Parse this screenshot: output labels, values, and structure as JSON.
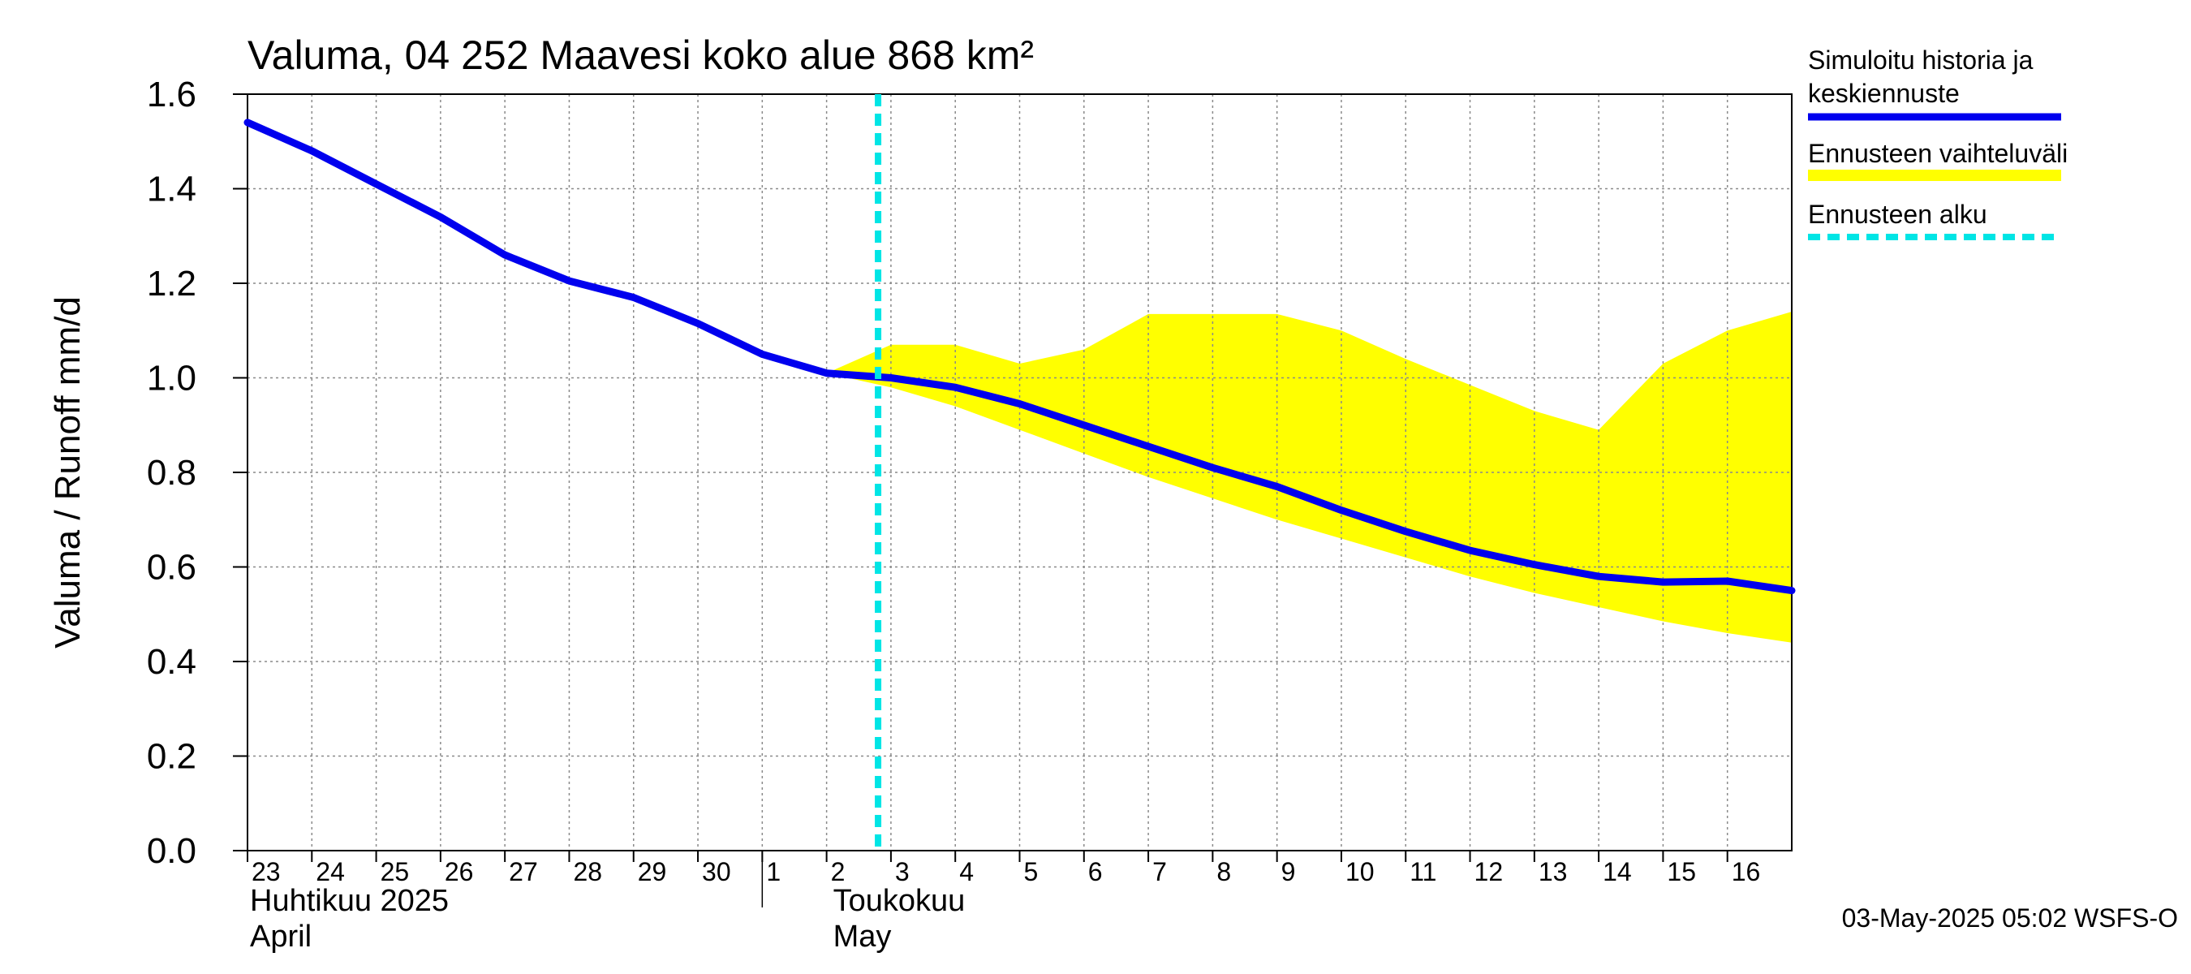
{
  "chart_data": {
    "type": "line",
    "title": "Valuma, 04 252 Maavesi koko alue 868 km²",
    "ylabel": "Valuma / Runoff    mm/d",
    "ylim": [
      0,
      1.6
    ],
    "yticks": [
      "0.0",
      "0.2",
      "0.4",
      "0.6",
      "0.8",
      "1.0",
      "1.2",
      "1.4",
      "1.6"
    ],
    "x_labels": [
      "23",
      "24",
      "25",
      "26",
      "27",
      "28",
      "29",
      "30",
      "1",
      "2",
      "3",
      "4",
      "5",
      "6",
      "7",
      "8",
      "9",
      "10",
      "11",
      "12",
      "13",
      "14",
      "15",
      "16"
    ],
    "month_labels": [
      {
        "line1": "Huhtikuu  2025",
        "line2": "April"
      },
      {
        "line1": "Toukokuu",
        "line2": "May"
      }
    ],
    "forecast_start_index": 9.8,
    "series": [
      {
        "name": "Simuloitu historia ja keskiennuste",
        "color": "#0000ee",
        "values": [
          1.54,
          1.48,
          1.41,
          1.34,
          1.26,
          1.205,
          1.17,
          1.115,
          1.05,
          1.01,
          1.0,
          0.98,
          0.945,
          0.9,
          0.855,
          0.81,
          0.77,
          0.72,
          0.675,
          0.635,
          0.605,
          0.58,
          0.568,
          0.57,
          0.55
        ]
      }
    ],
    "band": {
      "name": "Ennusteen vaihteluväli",
      "color": "#ffff00",
      "start_index": 9,
      "upper": [
        1.01,
        1.07,
        1.07,
        1.03,
        1.06,
        1.135,
        1.135,
        1.135,
        1.1,
        1.04,
        0.985,
        0.93,
        0.89,
        1.03,
        1.1,
        1.14
      ],
      "lower": [
        1.01,
        0.98,
        0.94,
        0.89,
        0.84,
        0.79,
        0.745,
        0.7,
        0.66,
        0.62,
        0.58,
        0.545,
        0.515,
        0.485,
        0.46,
        0.44
      ]
    },
    "legend": [
      {
        "label_line1": "Simuloitu historia ja",
        "label_line2": "keskiennuste",
        "color": "#0000ee",
        "style": "solid"
      },
      {
        "label_line1": "Ennusteen vaihteluväli",
        "label_line2": "",
        "color": "#ffff00",
        "style": "band"
      },
      {
        "label_line1": "Ennusteen alku",
        "label_line2": "",
        "color": "#00e5e5",
        "style": "dashed"
      }
    ],
    "footer": "03-May-2025 05:02 WSFS-O",
    "grid": true,
    "legend_position": "right"
  }
}
